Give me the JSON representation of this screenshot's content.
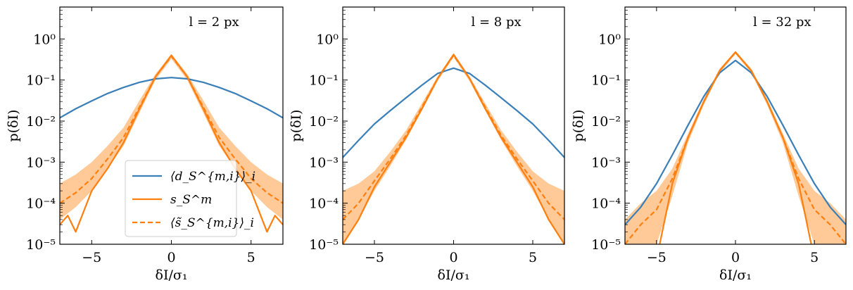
{
  "colors": {
    "blue": "#3a7fb8",
    "orange": "#ff7f0e",
    "orange_band": "#ffbf86",
    "blue_band": "#8fb5d6"
  },
  "legend": {
    "placement": "lower-center of first panel",
    "entries": [
      {
        "label": "⟨d_S^{m,i}⟩_i",
        "style": "solid",
        "color": "#3a7fb8"
      },
      {
        "label": "s_S^m",
        "style": "solid",
        "color": "#ff7f0e"
      },
      {
        "label": "⟨s̃_S^{m,i}⟩_i",
        "style": "dashed",
        "color": "#ff7f0e"
      }
    ]
  },
  "chart_data": [
    {
      "type": "line",
      "annotation": "l = 2 px",
      "xlabel": "δI/σ₁",
      "ylabel": "p(δI)",
      "xlim": [
        -7,
        7
      ],
      "ylim": [
        1e-05,
        6
      ],
      "yscale": "log",
      "xticks": [
        -5,
        0,
        5
      ],
      "xtick_labels": [
        "−5",
        "0",
        "5"
      ],
      "yticks": [
        1e-05,
        0.0001,
        0.001,
        0.01,
        0.1,
        1
      ],
      "ytick_labels": [
        "10⁻⁵",
        "10⁻⁴",
        "10⁻³",
        "10⁻²",
        "10⁻¹",
        "10⁰"
      ],
      "grid": false,
      "series": [
        {
          "name": "⟨d_S^{m,i}⟩_i",
          "style": "solid",
          "color": "#3a7fb8",
          "x": [
            -7,
            -6,
            -5,
            -4,
            -3,
            -2,
            -1,
            0,
            1,
            2,
            3,
            4,
            5,
            6,
            7
          ],
          "y": [
            0.012,
            0.02,
            0.031,
            0.047,
            0.066,
            0.088,
            0.107,
            0.115,
            0.107,
            0.088,
            0.066,
            0.047,
            0.031,
            0.02,
            0.012
          ]
        },
        {
          "name": "s_S^m",
          "style": "solid",
          "color": "#ff7f0e",
          "x": [
            -7,
            -6.5,
            -6,
            -5,
            -4,
            -3,
            -2,
            -1,
            0,
            1,
            2,
            3,
            4,
            5,
            6,
            6.5,
            7
          ],
          "y": [
            3e-05,
            5e-05,
            2e-05,
            0.0002,
            0.0007,
            0.003,
            0.02,
            0.12,
            0.4,
            0.12,
            0.02,
            0.003,
            0.0007,
            0.0002,
            2e-05,
            5e-05,
            3e-05
          ]
        },
        {
          "name": "⟨s̃_S^{m,i}⟩_i",
          "style": "dashed",
          "color": "#ff7f0e",
          "x": [
            -7,
            -6,
            -5,
            -4,
            -3,
            -2,
            -1,
            0,
            1,
            2,
            3,
            4,
            5,
            6,
            7
          ],
          "y": [
            0.0001,
            0.00018,
            0.0004,
            0.0012,
            0.004,
            0.022,
            0.12,
            0.38,
            0.12,
            0.022,
            0.004,
            0.0012,
            0.0004,
            0.00018,
            0.0001
          ]
        }
      ],
      "band": {
        "color": "#ffbf86",
        "x": [
          -7,
          -6,
          -5,
          -4,
          -3,
          -2,
          -1,
          0,
          1,
          2,
          3,
          4,
          5,
          6,
          7
        ],
        "low": [
          4e-05,
          8e-05,
          0.0002,
          0.0007,
          0.0025,
          0.016,
          0.1,
          0.33,
          0.1,
          0.016,
          0.0025,
          0.0007,
          0.0002,
          8e-05,
          4e-05
        ],
        "high": [
          0.0003,
          0.0005,
          0.001,
          0.0025,
          0.007,
          0.032,
          0.14,
          0.43,
          0.14,
          0.032,
          0.007,
          0.0025,
          0.001,
          0.0005,
          0.0003
        ]
      }
    },
    {
      "type": "line",
      "annotation": "l = 8 px",
      "xlabel": "δI/σ₁",
      "ylabel": "p(δI)",
      "xlim": [
        -7,
        7
      ],
      "ylim": [
        1e-05,
        6
      ],
      "yscale": "log",
      "xticks": [
        -5,
        0,
        5
      ],
      "xtick_labels": [
        "−5",
        "0",
        "5"
      ],
      "yticks": [
        1e-05,
        0.0001,
        0.001,
        0.01,
        0.1,
        1
      ],
      "ytick_labels": [
        "10⁻⁵",
        "10⁻⁴",
        "10⁻³",
        "10⁻²",
        "10⁻¹",
        "10⁰"
      ],
      "grid": false,
      "series": [
        {
          "name": "⟨d_S^{m,i}⟩_i",
          "style": "solid",
          "color": "#3a7fb8",
          "x": [
            -7,
            -6,
            -5,
            -4,
            -3,
            -2,
            -1,
            0,
            1,
            2,
            3,
            4,
            5,
            6,
            7
          ],
          "y": [
            0.0013,
            0.0034,
            0.0085,
            0.018,
            0.037,
            0.075,
            0.145,
            0.195,
            0.145,
            0.075,
            0.037,
            0.018,
            0.0085,
            0.0034,
            0.0013
          ]
        },
        {
          "name": "s_S^m",
          "style": "solid",
          "color": "#ff7f0e",
          "x": [
            -7,
            -6,
            -5,
            -4,
            -3,
            -2,
            -1,
            0,
            1,
            2,
            3,
            4,
            5,
            6,
            7
          ],
          "y": [
            1e-05,
            4e-05,
            0.00025,
            0.001,
            0.004,
            0.02,
            0.11,
            0.42,
            0.11,
            0.02,
            0.004,
            0.001,
            0.00025,
            4e-05,
            1e-05
          ]
        },
        {
          "name": "⟨s̃_S^{m,i}⟩_i",
          "style": "dashed",
          "color": "#ff7f0e",
          "x": [
            -7,
            -6,
            -5,
            -4,
            -3,
            -2,
            -1,
            0,
            1,
            2,
            3,
            4,
            5,
            6,
            7
          ],
          "y": [
            4e-05,
            0.0001,
            0.00035,
            0.0012,
            0.0045,
            0.022,
            0.11,
            0.4,
            0.11,
            0.022,
            0.0045,
            0.0012,
            0.00035,
            0.0001,
            4e-05
          ]
        }
      ],
      "band": {
        "color": "#ffbf86",
        "x": [
          -7,
          -6,
          -5,
          -4,
          -3,
          -2,
          -1,
          0,
          1,
          2,
          3,
          4,
          5,
          6,
          7
        ],
        "low": [
          1e-05,
          4e-05,
          0.0002,
          0.0008,
          0.0035,
          0.018,
          0.095,
          0.36,
          0.095,
          0.018,
          0.0035,
          0.0008,
          0.0002,
          4e-05,
          1e-05
        ],
        "high": [
          0.0002,
          0.0003,
          0.0006,
          0.0018,
          0.006,
          0.027,
          0.125,
          0.45,
          0.125,
          0.027,
          0.006,
          0.0018,
          0.0006,
          0.0003,
          0.0002
        ]
      }
    },
    {
      "type": "line",
      "annotation": "l = 32 px",
      "xlabel": "δI/σ₁",
      "ylabel": "p(δI)",
      "xlim": [
        -7,
        7
      ],
      "ylim": [
        1e-05,
        6
      ],
      "yscale": "log",
      "xticks": [
        -5,
        0,
        5
      ],
      "xtick_labels": [
        "−5",
        "0",
        "5"
      ],
      "yticks": [
        1e-05,
        0.0001,
        0.001,
        0.01,
        0.1,
        1
      ],
      "ytick_labels": [
        "10⁻⁵",
        "10⁻⁴",
        "10⁻³",
        "10⁻²",
        "10⁻¹",
        "10⁰"
      ],
      "grid": false,
      "series": [
        {
          "name": "⟨d_S^{m,i}⟩_i",
          "style": "solid",
          "color": "#3a7fb8",
          "x": [
            -7,
            -6,
            -5,
            -4,
            -3,
            -2,
            -1,
            0,
            1,
            2,
            3,
            4,
            5,
            6,
            7
          ],
          "y": [
            3e-05,
            8e-05,
            0.0003,
            0.0015,
            0.008,
            0.04,
            0.15,
            0.3,
            0.15,
            0.04,
            0.008,
            0.0015,
            0.0003,
            8e-05,
            3e-05
          ]
        },
        {
          "name": "s_S^m",
          "style": "solid",
          "color": "#ff7f0e",
          "x": [
            -4.8,
            -4,
            -3,
            -2,
            -1,
            0,
            1,
            2,
            3,
            4,
            4.8
          ],
          "y": [
            1e-05,
            0.0003,
            0.004,
            0.03,
            0.17,
            0.48,
            0.17,
            0.03,
            0.004,
            0.0003,
            1e-05
          ]
        },
        {
          "name": "⟨s̃_S^{m,i}⟩_i",
          "style": "dashed",
          "color": "#ff7f0e",
          "x": [
            -7,
            -6,
            -5,
            -4,
            -3,
            -2,
            -1,
            0,
            1,
            2,
            3,
            4,
            5,
            6,
            7
          ],
          "y": [
            1e-05,
            3e-05,
            7e-05,
            0.0004,
            0.004,
            0.03,
            0.17,
            0.47,
            0.17,
            0.03,
            0.004,
            0.0004,
            7e-05,
            3e-05,
            1e-05
          ]
        }
      ],
      "band": {
        "color": "#ffbf86",
        "x": [
          -7,
          -6,
          -5,
          -4,
          -3,
          -2,
          -1,
          0,
          1,
          2,
          3,
          4,
          5,
          6,
          7
        ],
        "low": [
          1e-05,
          1e-05,
          1e-05,
          0.00015,
          0.003,
          0.025,
          0.15,
          0.43,
          0.15,
          0.025,
          0.003,
          0.00015,
          1e-05,
          1e-05,
          1e-05
        ],
        "high": [
          4e-05,
          0.0001,
          0.0002,
          0.0007,
          0.005,
          0.035,
          0.19,
          0.51,
          0.19,
          0.035,
          0.005,
          0.0007,
          0.0002,
          0.0001,
          4e-05
        ]
      }
    }
  ]
}
